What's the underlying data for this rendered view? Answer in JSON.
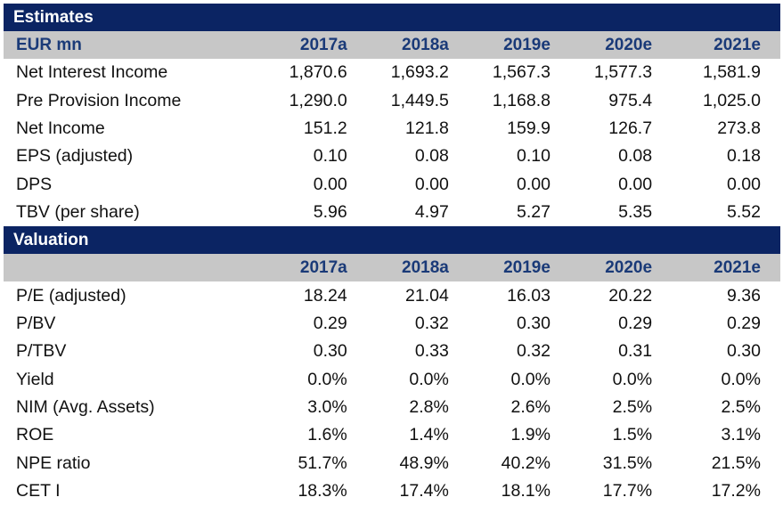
{
  "estimates": {
    "title": "Estimates",
    "unit_label": "EUR mn",
    "columns": [
      "2017a",
      "2018a",
      "2019e",
      "2020e",
      "2021e"
    ],
    "rows": [
      {
        "label": "Net Interest Income",
        "values": [
          "1,870.6",
          "1,693.2",
          "1,567.3",
          "1,577.3",
          "1,581.9"
        ]
      },
      {
        "label": "Pre Provision Income",
        "values": [
          "1,290.0",
          "1,449.5",
          "1,168.8",
          "975.4",
          "1,025.0"
        ]
      },
      {
        "label": "Net Income",
        "values": [
          "151.2",
          "121.8",
          "159.9",
          "126.7",
          "273.8"
        ]
      },
      {
        "label": "EPS (adjusted)",
        "values": [
          "0.10",
          "0.08",
          "0.10",
          "0.08",
          "0.18"
        ]
      },
      {
        "label": "DPS",
        "values": [
          "0.00",
          "0.00",
          "0.00",
          "0.00",
          "0.00"
        ]
      },
      {
        "label": "TBV (per share)",
        "values": [
          "5.96",
          "4.97",
          "5.27",
          "5.35",
          "5.52"
        ]
      }
    ]
  },
  "valuation": {
    "title": "Valuation",
    "unit_label": "",
    "columns": [
      "2017a",
      "2018a",
      "2019e",
      "2020e",
      "2021e"
    ],
    "rows": [
      {
        "label": "P/E (adjusted)",
        "values": [
          "18.24",
          "21.04",
          "16.03",
          "20.22",
          "9.36"
        ]
      },
      {
        "label": "P/BV",
        "values": [
          "0.29",
          "0.32",
          "0.30",
          "0.29",
          "0.29"
        ]
      },
      {
        "label": "P/TBV",
        "values": [
          "0.30",
          "0.33",
          "0.32",
          "0.31",
          "0.30"
        ]
      },
      {
        "label": "Yield",
        "values": [
          "0.0%",
          "0.0%",
          "0.0%",
          "0.0%",
          "0.0%"
        ]
      },
      {
        "label": "NIM (Avg. Assets)",
        "values": [
          "3.0%",
          "2.8%",
          "2.6%",
          "2.5%",
          "2.5%"
        ]
      },
      {
        "label": "ROE",
        "values": [
          "1.6%",
          "1.4%",
          "1.9%",
          "1.5%",
          "3.1%"
        ]
      },
      {
        "label": "NPE ratio",
        "values": [
          "51.7%",
          "48.9%",
          "40.2%",
          "31.5%",
          "21.5%"
        ]
      },
      {
        "label": "CET I",
        "values": [
          "18.3%",
          "17.4%",
          "18.1%",
          "17.7%",
          "17.2%"
        ]
      }
    ]
  },
  "colors": {
    "section_header_bg": "#0b2463",
    "subheader_bg": "#c7c7c7",
    "subheader_text": "#1a3a78"
  }
}
